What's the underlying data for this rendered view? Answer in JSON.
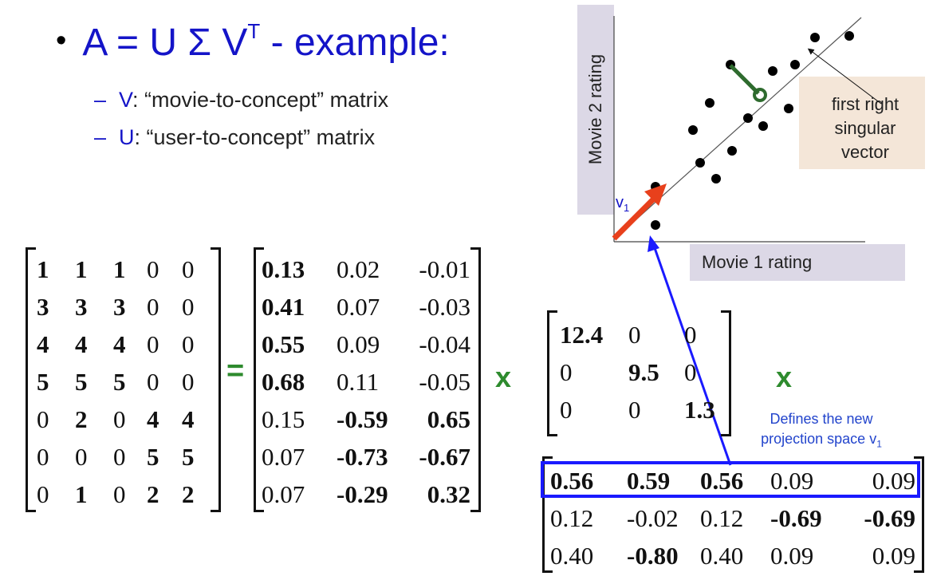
{
  "title": {
    "bullet": "•",
    "formula_main": "A = U Σ V",
    "formula_sup": "T",
    "formula_rest": " - example:"
  },
  "bullets": [
    {
      "dash": "–",
      "key": "V",
      "text": ": “movie-to-concept” matrix"
    },
    {
      "dash": "–",
      "key": "U",
      "text": ": “user-to-concept” matrix"
    }
  ],
  "chart": {
    "ylabel": "Movie 2 rating",
    "xlabel": "Movie 1 rating",
    "callout": [
      "first right",
      "singular",
      "vector"
    ],
    "vector_label": "v",
    "vector_sub": "1"
  },
  "operators": {
    "equals": "=",
    "times": "x"
  },
  "matrix_A": [
    [
      {
        "v": "1",
        "b": true
      },
      {
        "v": "1",
        "b": true
      },
      {
        "v": "1",
        "b": true
      },
      {
        "v": "0",
        "b": false
      },
      {
        "v": "0",
        "b": false
      }
    ],
    [
      {
        "v": "3",
        "b": true
      },
      {
        "v": "3",
        "b": true
      },
      {
        "v": "3",
        "b": true
      },
      {
        "v": "0",
        "b": false
      },
      {
        "v": "0",
        "b": false
      }
    ],
    [
      {
        "v": "4",
        "b": true
      },
      {
        "v": "4",
        "b": true
      },
      {
        "v": "4",
        "b": true
      },
      {
        "v": "0",
        "b": false
      },
      {
        "v": "0",
        "b": false
      }
    ],
    [
      {
        "v": "5",
        "b": true
      },
      {
        "v": "5",
        "b": true
      },
      {
        "v": "5",
        "b": true
      },
      {
        "v": "0",
        "b": false
      },
      {
        "v": "0",
        "b": false
      }
    ],
    [
      {
        "v": "0",
        "b": false
      },
      {
        "v": "2",
        "b": true
      },
      {
        "v": "0",
        "b": false
      },
      {
        "v": "4",
        "b": true
      },
      {
        "v": "4",
        "b": true
      }
    ],
    [
      {
        "v": "0",
        "b": false
      },
      {
        "v": "0",
        "b": false
      },
      {
        "v": "0",
        "b": false
      },
      {
        "v": "5",
        "b": true
      },
      {
        "v": "5",
        "b": true
      }
    ],
    [
      {
        "v": "0",
        "b": false
      },
      {
        "v": "1",
        "b": true
      },
      {
        "v": "0",
        "b": false
      },
      {
        "v": "2",
        "b": true
      },
      {
        "v": "2",
        "b": true
      }
    ]
  ],
  "matrix_U": [
    [
      {
        "v": "0.13",
        "b": true
      },
      {
        "v": "0.02",
        "b": false
      },
      {
        "v": "-0.01",
        "b": false
      }
    ],
    [
      {
        "v": "0.41",
        "b": true
      },
      {
        "v": "0.07",
        "b": false
      },
      {
        "v": "-0.03",
        "b": false
      }
    ],
    [
      {
        "v": "0.55",
        "b": true
      },
      {
        "v": "0.09",
        "b": false
      },
      {
        "v": "-0.04",
        "b": false
      }
    ],
    [
      {
        "v": "0.68",
        "b": true
      },
      {
        "v": "0.11",
        "b": false
      },
      {
        "v": "-0.05",
        "b": false
      }
    ],
    [
      {
        "v": "0.15",
        "b": false
      },
      {
        "v": "-0.59",
        "b": true
      },
      {
        "v": "0.65",
        "b": true
      }
    ],
    [
      {
        "v": "0.07",
        "b": false
      },
      {
        "v": "-0.73",
        "b": true
      },
      {
        "v": "-0.67",
        "b": true
      }
    ],
    [
      {
        "v": "0.07",
        "b": false
      },
      {
        "v": "-0.29",
        "b": true
      },
      {
        "v": "0.32",
        "b": true
      }
    ]
  ],
  "matrix_S": [
    [
      {
        "v": "12.4",
        "b": true
      },
      {
        "v": "0",
        "b": false
      },
      {
        "v": "0",
        "b": false
      }
    ],
    [
      {
        "v": "0",
        "b": false
      },
      {
        "v": "9.5",
        "b": true
      },
      {
        "v": "0",
        "b": false
      }
    ],
    [
      {
        "v": "0",
        "b": false
      },
      {
        "v": "0",
        "b": false
      },
      {
        "v": "1.3",
        "b": true
      }
    ]
  ],
  "matrix_VT": [
    [
      {
        "v": "0.56",
        "b": true
      },
      {
        "v": "0.59",
        "b": true
      },
      {
        "v": "0.56",
        "b": true
      },
      {
        "v": "0.09",
        "b": false
      },
      {
        "v": "0.09",
        "b": false
      }
    ],
    [
      {
        "v": "0.12",
        "b": false
      },
      {
        "v": "-0.02",
        "b": false
      },
      {
        "v": "0.12",
        "b": false
      },
      {
        "v": "-0.69",
        "b": true
      },
      {
        "v": "-0.69",
        "b": true
      }
    ],
    [
      {
        "v": "0.40",
        "b": false
      },
      {
        "v": "-0.80",
        "b": true
      },
      {
        "v": "0.40",
        "b": false
      },
      {
        "v": "0.09",
        "b": false
      },
      {
        "v": "0.09",
        "b": false
      }
    ]
  ],
  "annotation": {
    "line1": "Defines  the new",
    "line2": "projection space v",
    "line2_sub": "1"
  },
  "colors": {
    "accent_blue": "#1414c8",
    "operator_green": "#2e8b2e",
    "arrow_red": "#e8401c",
    "projection_green": "#2e6b2e",
    "highlight_blue": "#1a1aff"
  }
}
